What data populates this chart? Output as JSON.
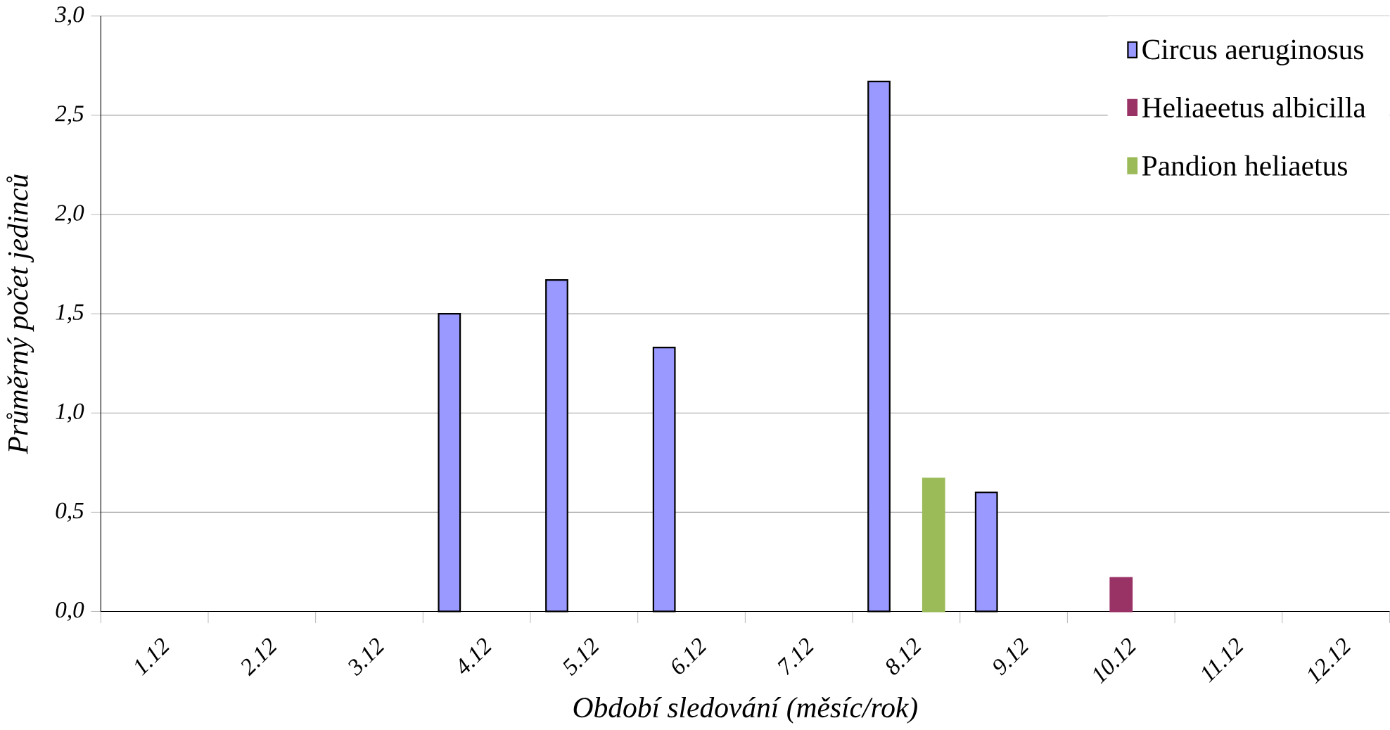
{
  "chart_data": {
    "type": "bar",
    "xlabel": "Období sledování (měsíc/rok)",
    "ylabel": "Průměrný počet jedinců",
    "categories": [
      "1.12",
      "2.12",
      "3.12",
      "4.12",
      "5.12",
      "6.12",
      "7.12",
      "8.12",
      "9.12",
      "10.12",
      "11.12",
      "12.12"
    ],
    "series": [
      {
        "name": "Circus aeruginosus",
        "color": "#9999ff",
        "values": [
          null,
          null,
          null,
          1.5,
          1.67,
          1.33,
          null,
          2.67,
          0.6,
          null,
          null,
          null
        ]
      },
      {
        "name": "Heliaeetus albicilla",
        "color": "#993366",
        "values": [
          null,
          null,
          null,
          null,
          null,
          null,
          null,
          null,
          null,
          0.17,
          null,
          null
        ]
      },
      {
        "name": "Pandion heliaetus",
        "color": "#9bbb59",
        "values": [
          null,
          null,
          null,
          null,
          null,
          null,
          null,
          0.67,
          null,
          null,
          null,
          null
        ]
      }
    ],
    "ylim": [
      0,
      3
    ],
    "yticks": [
      {
        "value": 0,
        "label": "0,0"
      },
      {
        "value": 0.5,
        "label": "0,5"
      },
      {
        "value": 1,
        "label": "1,0"
      },
      {
        "value": 1.5,
        "label": "1,5"
      },
      {
        "value": 2,
        "label": "2,0"
      },
      {
        "value": 2.5,
        "label": "2,5"
      },
      {
        "value": 3,
        "label": "3,0"
      }
    ],
    "grid": "y",
    "legend": "top right"
  }
}
